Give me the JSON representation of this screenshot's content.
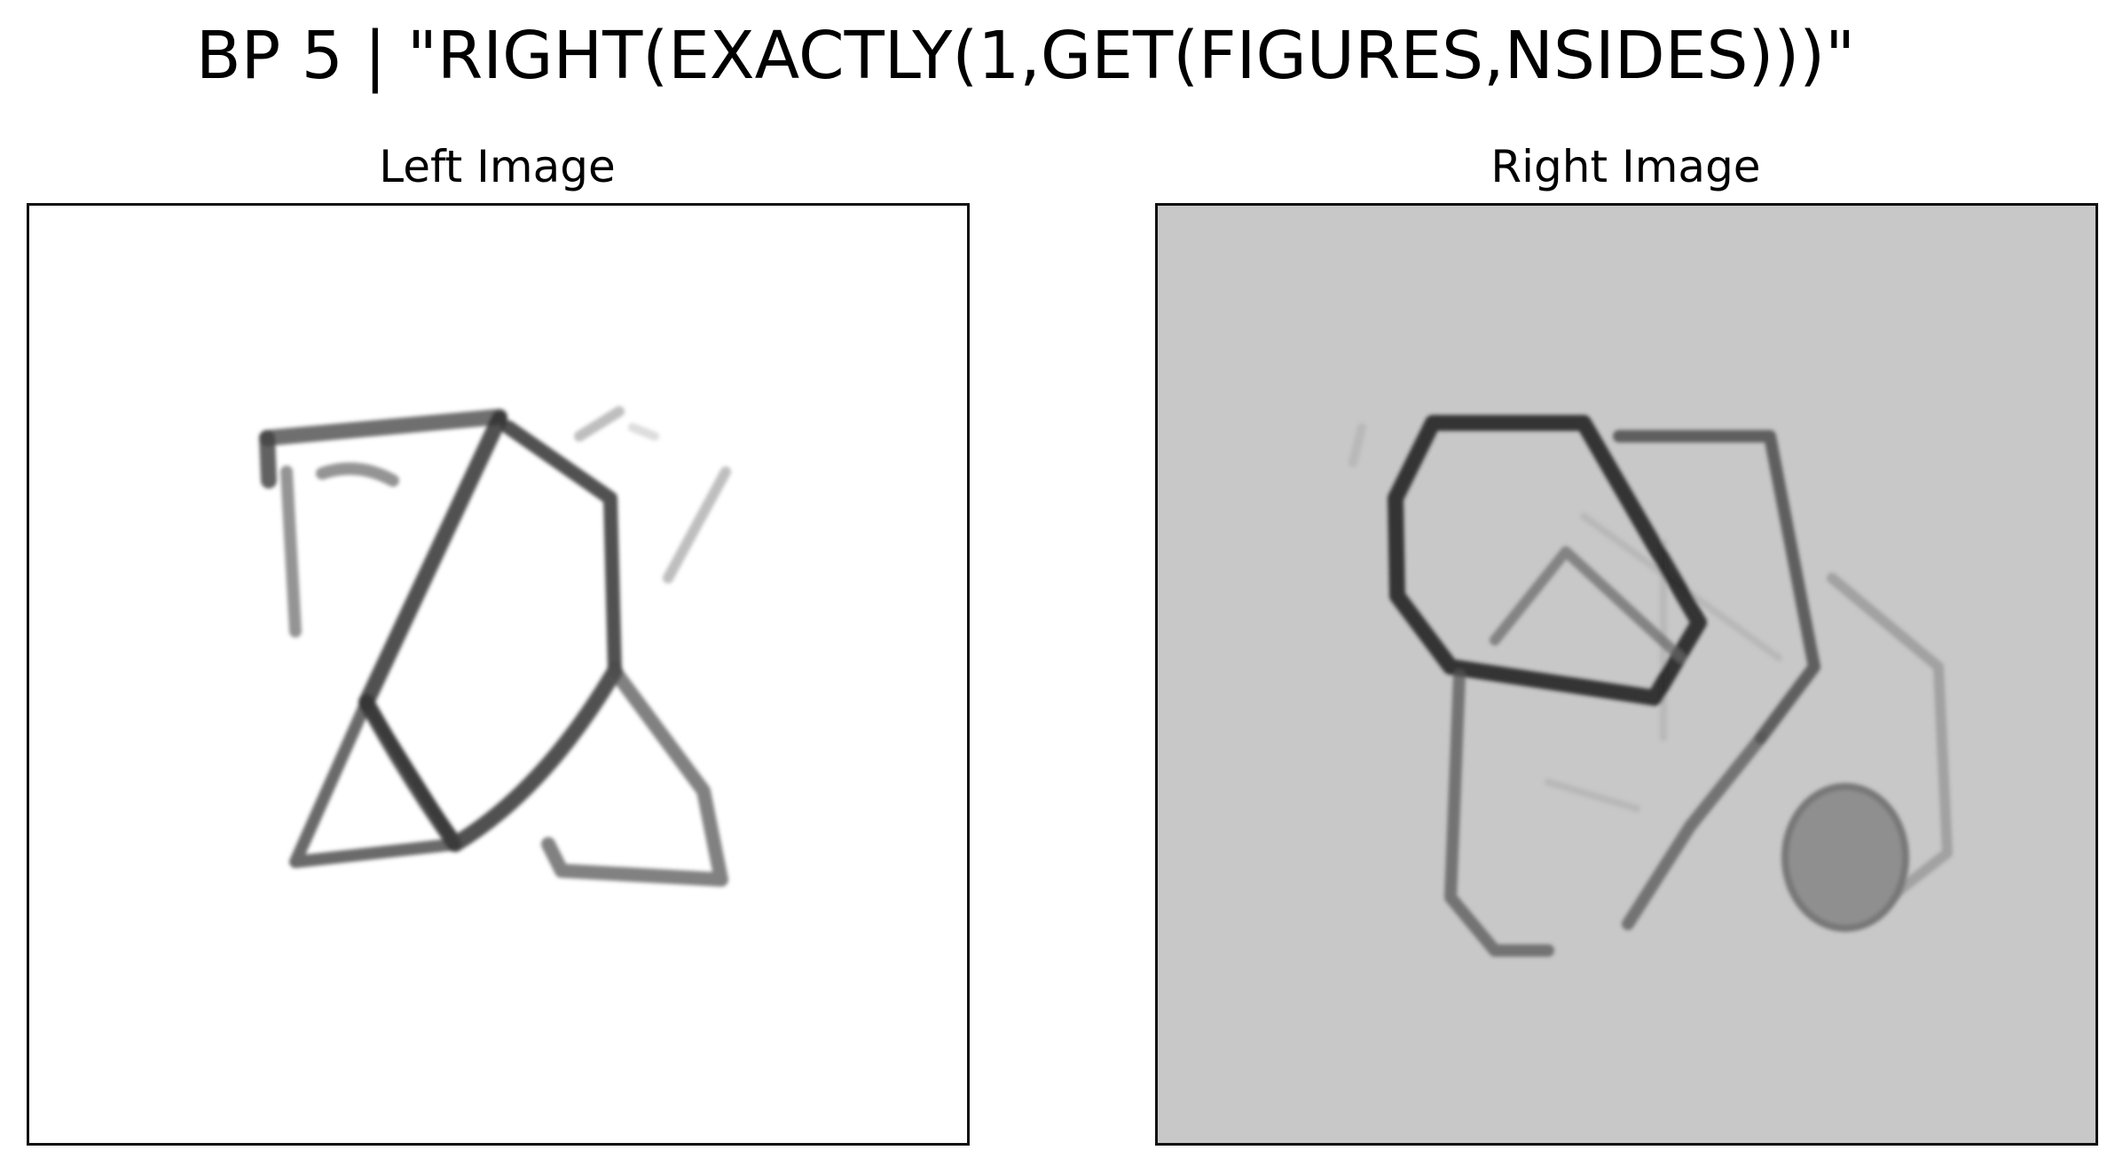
{
  "title": "BP 5 | \"RIGHT(EXACTLY(1,GET(FIGURES,NSIDES)))\"",
  "panels": {
    "left": {
      "label": "Left Image",
      "background": "#ffffff"
    },
    "right": {
      "label": "Right Image",
      "background": "#c8c8c8"
    }
  }
}
